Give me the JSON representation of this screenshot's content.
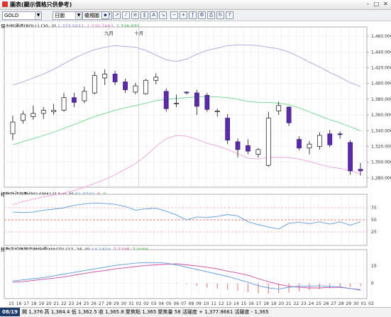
{
  "window": {
    "title": "圖表(顯示價格只供參考)",
    "min": "–",
    "max": "□",
    "close": "✕"
  },
  "toolbar": {
    "symbol": "GOLD",
    "period": "日圖",
    "chart_type": "蠟燭圖"
  },
  "panels": {
    "main_legend": {
      "name": "保力加通道(BOLL) (20, 2)",
      "v1": "1,373.5011",
      "v2": "1,370.1683",
      "v3": "1,326.635"
    },
    "rsi_legend": {
      "name": "相對強弱指數(RSI SMA) (14, 0, 0)",
      "v1": "61.0742",
      "v2": "0",
      "v3": "0"
    },
    "macd_legend": {
      "name": "移動平均匯聚背馳指標(MACD) (12, 26, 9)",
      "v1": "14.1324",
      "v2": "7.1238",
      "v3": "7.0086"
    }
  },
  "chart_data": [
    {
      "type": "candlestick",
      "title": "",
      "month_labels": [
        {
          "label": "九月",
          "at": "28"
        },
        {
          "label": "十月",
          "at": "01"
        }
      ],
      "x_ticks": [
        "15",
        "16",
        "17",
        "18",
        "19",
        "20",
        "21",
        "22",
        "23",
        "24",
        "25",
        "26",
        "27",
        "28",
        "29",
        "30",
        "31",
        "01",
        "02",
        "03",
        "04",
        "05",
        "06",
        "07",
        "08",
        "09",
        "10",
        "11",
        "12",
        "13",
        "14",
        "15",
        "16",
        "17",
        "18",
        "19",
        "20",
        "21",
        "22",
        "23",
        "24",
        "25",
        "26",
        "27",
        "28",
        "29",
        "30",
        "01",
        "02"
      ],
      "ylim": [
        1270,
        1470
      ],
      "y_ticks": [
        "1,280.000",
        "1,300.000",
        "1,320.000",
        "1,340.000",
        "1,360.000",
        "1,380.000",
        "1,400.000",
        "1,420.000",
        "1,440.000",
        "1,460.000"
      ],
      "candles": [
        {
          "o": 1336,
          "h": 1359,
          "l": 1328,
          "c": 1351
        },
        {
          "o": 1353,
          "h": 1365,
          "l": 1349,
          "c": 1361
        },
        {
          "o": 1358,
          "h": 1372,
          "l": 1354,
          "c": 1362
        },
        {
          "o": 1362,
          "h": 1370,
          "l": 1355,
          "c": 1366
        },
        {
          "o": 1364,
          "h": 1374,
          "l": 1360,
          "c": 1366
        },
        {
          "o": 1366,
          "h": 1388,
          "l": 1364,
          "c": 1382
        },
        {
          "o": 1382,
          "h": 1388,
          "l": 1370,
          "c": 1376
        },
        {
          "o": 1378,
          "h": 1396,
          "l": 1375,
          "c": 1390
        },
        {
          "o": 1388,
          "h": 1415,
          "l": 1386,
          "c": 1410
        },
        {
          "o": 1407,
          "h": 1418,
          "l": 1398,
          "c": 1412
        },
        {
          "o": 1412,
          "h": 1416,
          "l": 1398,
          "c": 1402
        },
        {
          "o": 1402,
          "h": 1406,
          "l": 1388,
          "c": 1392
        },
        {
          "o": 1389,
          "h": 1401,
          "l": 1386,
          "c": 1397
        },
        {
          "o": 1387,
          "h": 1406,
          "l": 1386,
          "c": 1404
        },
        {
          "o": 1404,
          "h": 1413,
          "l": 1399,
          "c": 1408
        },
        {
          "o": 1390,
          "h": 1394,
          "l": 1364,
          "c": 1368
        },
        {
          "o": 1375,
          "h": 1386,
          "l": 1370,
          "c": 1375
        },
        {
          "o": 1389,
          "h": 1390,
          "l": 1386,
          "c": 1388
        },
        {
          "o": 1388,
          "h": 1392,
          "l": 1360,
          "c": 1371
        },
        {
          "o": 1385,
          "h": 1388,
          "l": 1364,
          "c": 1367
        },
        {
          "o": 1364,
          "h": 1368,
          "l": 1358,
          "c": 1365
        },
        {
          "o": 1356,
          "h": 1361,
          "l": 1323,
          "c": 1328
        },
        {
          "o": 1326,
          "h": 1330,
          "l": 1306,
          "c": 1316
        },
        {
          "o": 1321,
          "h": 1329,
          "l": 1310,
          "c": 1314
        },
        {
          "o": 1310,
          "h": 1318,
          "l": 1306,
          "c": 1316
        },
        {
          "o": 1296,
          "h": 1364,
          "l": 1294,
          "c": 1356
        },
        {
          "o": 1365,
          "h": 1377,
          "l": 1360,
          "c": 1372
        },
        {
          "o": 1370,
          "h": 1371,
          "l": 1346,
          "c": 1350
        },
        {
          "o": 1329,
          "h": 1333,
          "l": 1315,
          "c": 1318
        },
        {
          "o": 1318,
          "h": 1327,
          "l": 1310,
          "c": 1323
        },
        {
          "o": 1320,
          "h": 1338,
          "l": 1316,
          "c": 1334
        },
        {
          "o": 1336,
          "h": 1341,
          "l": 1319,
          "c": 1322
        },
        {
          "o": 1336,
          "h": 1339,
          "l": 1330,
          "c": 1335
        },
        {
          "o": 1325,
          "h": 1328,
          "l": 1284,
          "c": 1289
        },
        {
          "o": 1291,
          "h": 1299,
          "l": 1283,
          "c": 1289
        }
      ],
      "boll_upper": [
        1398,
        1402,
        1407,
        1412,
        1418,
        1425,
        1432,
        1438,
        1443,
        1446,
        1448,
        1447,
        1446,
        1442,
        1436,
        1430,
        1428,
        1431,
        1437,
        1442,
        1445,
        1448,
        1449,
        1449,
        1448,
        1446,
        1444,
        1440,
        1434,
        1427,
        1421,
        1414,
        1408,
        1401,
        1396
      ],
      "boll_middle": [
        1322,
        1326,
        1330,
        1334,
        1338,
        1343,
        1348,
        1353,
        1358,
        1362,
        1366,
        1369,
        1372,
        1375,
        1378,
        1380,
        1381,
        1382,
        1383,
        1383,
        1383,
        1382,
        1380,
        1377,
        1376,
        1376,
        1375,
        1373,
        1369,
        1364,
        1359,
        1354,
        1350,
        1345,
        1340
      ],
      "boll_lower": [
        1246,
        1250,
        1253,
        1256,
        1258,
        1261,
        1264,
        1268,
        1273,
        1278,
        1284,
        1291,
        1298,
        1308,
        1320,
        1330,
        1334,
        1333,
        1329,
        1324,
        1321,
        1316,
        1311,
        1305,
        1304,
        1306,
        1306,
        1306,
        1304,
        1301,
        1297,
        1294,
        1292,
        1289,
        1285
      ],
      "rsi": {
        "ylim": [
          0,
          100
        ],
        "y_ticks": [
          25,
          50,
          75
        ],
        "values": [
          66,
          65,
          66,
          70,
          72,
          75,
          80,
          83,
          85,
          84,
          82,
          78,
          70,
          73,
          74,
          68,
          60,
          50,
          56,
          55,
          57,
          61,
          58,
          46,
          40,
          35,
          31,
          43,
          45,
          42,
          46,
          41,
          46,
          39,
          46
        ]
      },
      "macd": {
        "ylim": [
          -12,
          28
        ],
        "y_ticks": [
          0,
          15
        ],
        "line": [
          2,
          3,
          4,
          5,
          6.5,
          8,
          9.5,
          11,
          12.5,
          14,
          15.5,
          16.5,
          17.5,
          18,
          18,
          17.5,
          16,
          14,
          12,
          10,
          8,
          6,
          3.5,
          1,
          -2,
          -4,
          -5,
          -3.5,
          -2.5,
          -2.5,
          -2,
          -2.8,
          -3,
          -4.5,
          -6
        ],
        "signal": [
          1,
          1.5,
          2.5,
          3.5,
          4.5,
          5.5,
          7,
          8.5,
          10,
          11,
          12.5,
          13.5,
          14.5,
          15.5,
          16,
          16.5,
          17,
          16,
          15,
          14,
          12.5,
          10.5,
          9,
          7,
          4,
          1.5,
          -1,
          -2.5,
          -3.5,
          -4,
          -4,
          -3.5,
          -3.5,
          -4.5,
          -5.5
        ],
        "histogram": [
          0,
          0,
          0,
          0,
          0,
          0,
          0,
          0,
          0,
          0,
          0,
          0,
          0,
          0,
          0,
          0,
          -0.3,
          -1,
          -2,
          -3.5,
          -4.5,
          -5.5,
          -6.5,
          -7.5,
          -8.5,
          -9,
          -8.5,
          -8,
          -7,
          -6,
          -5,
          -4.5,
          -3.5,
          -3,
          -2.5
        ]
      }
    }
  ],
  "status": {
    "date": "08/19",
    "text": "開 1,376  高 1,384.4  低 1,362.5  收 1,365.8  聚焦點 1,365  聚焦量 58  活躍度 + 1,377.8661  活躍度 - 1,365"
  }
}
